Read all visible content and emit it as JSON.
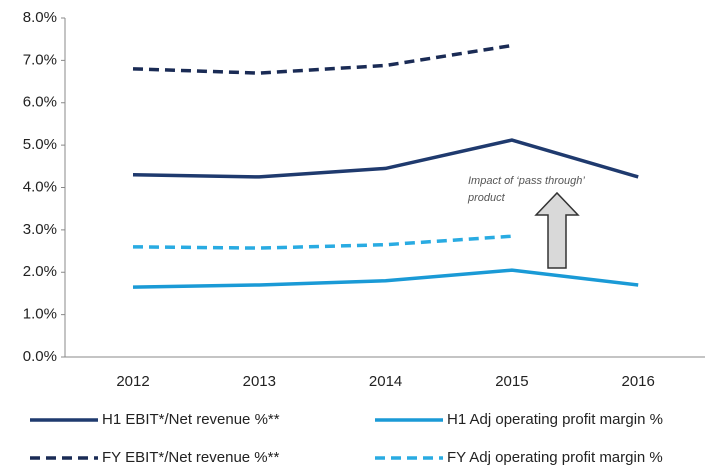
{
  "chart_data": {
    "type": "line",
    "categories": [
      "2012",
      "2013",
      "2014",
      "2015",
      "2016"
    ],
    "series": [
      {
        "name": "H1 EBIT*/Net revenue %**",
        "color": "#1f3a6e",
        "dashed": false,
        "values": [
          4.3,
          4.25,
          4.45,
          5.12,
          4.25
        ]
      },
      {
        "name": "H1 Adj operating profit margin %",
        "color": "#1a9ad6",
        "dashed": false,
        "values": [
          1.65,
          1.7,
          1.8,
          2.05,
          1.7
        ]
      },
      {
        "name": "FY EBIT*/Net revenue %**",
        "color": "#1a2b55",
        "dashed": true,
        "values": [
          6.8,
          6.7,
          6.88,
          7.35,
          null
        ]
      },
      {
        "name": "FY Adj operating profit margin %",
        "color": "#29abe2",
        "dashed": true,
        "values": [
          2.6,
          2.57,
          2.65,
          2.85,
          null
        ]
      }
    ],
    "ylim": [
      0,
      8
    ],
    "yticks": [
      {
        "value": 0,
        "label": "0.0%"
      },
      {
        "value": 1,
        "label": "1.0%"
      },
      {
        "value": 2,
        "label": "2.0%"
      },
      {
        "value": 3,
        "label": "3.0%"
      },
      {
        "value": 4,
        "label": "4.0%"
      },
      {
        "value": 5,
        "label": "5.0%"
      },
      {
        "value": 6,
        "label": "6.0%"
      },
      {
        "value": 7,
        "label": "7.0%"
      },
      {
        "value": 8,
        "label": "8.0%"
      }
    ],
    "grid": false,
    "annotation": [
      "Impact of ‘pass through’",
      "product"
    ]
  }
}
